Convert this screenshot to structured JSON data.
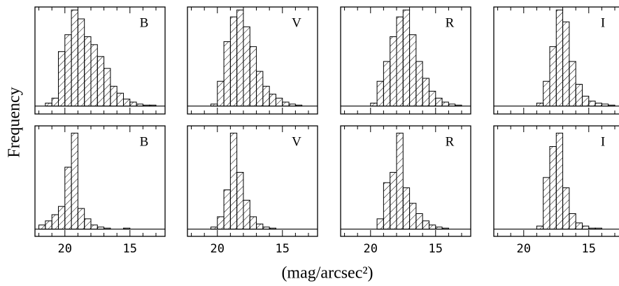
{
  "figure": {
    "ylabel": "Frequency",
    "xlabel": "(mag/arcsec²)"
  },
  "chart_data": [
    {
      "type": "histogram",
      "label": "B",
      "bins": [
        22,
        21.5,
        21,
        20.5,
        20,
        19.5,
        19,
        18.5,
        18,
        17.5,
        17,
        16.5,
        16,
        15.5,
        15,
        14.5,
        14,
        13.5,
        13,
        12.5
      ],
      "values": [
        0,
        3,
        8,
        55,
        72,
        97,
        88,
        70,
        62,
        50,
        38,
        20,
        13,
        7,
        4,
        2,
        1,
        1,
        0
      ],
      "xlim": [
        22.3,
        12.3
      ],
      "xticks": [
        20,
        15
      ],
      "minor_xticks": [
        22,
        21,
        19,
        18,
        17,
        16,
        14,
        13
      ],
      "ylim": [
        -8,
        100
      ],
      "show_xtick_labels": false,
      "color": "#000000"
    },
    {
      "type": "histogram",
      "label": "V",
      "bins": [
        22,
        21.5,
        21,
        20.5,
        20,
        19.5,
        19,
        18.5,
        18,
        17.5,
        17,
        16.5,
        16,
        15.5,
        15,
        14.5,
        14,
        13.5,
        13,
        12.5
      ],
      "values": [
        0,
        0,
        0,
        2,
        25,
        65,
        90,
        97,
        80,
        60,
        35,
        20,
        12,
        8,
        4,
        2,
        1,
        0,
        0
      ],
      "xlim": [
        22.3,
        12.3
      ],
      "xticks": [
        20,
        15
      ],
      "minor_xticks": [
        22,
        21,
        19,
        18,
        17,
        16,
        14,
        13
      ],
      "ylim": [
        -8,
        100
      ],
      "show_xtick_labels": false,
      "color": "#000000"
    },
    {
      "type": "histogram",
      "label": "R",
      "bins": [
        22,
        21.5,
        21,
        20.5,
        20,
        19.5,
        19,
        18.5,
        18,
        17.5,
        17,
        16.5,
        16,
        15.5,
        15,
        14.5,
        14,
        13.5,
        13,
        12.5
      ],
      "values": [
        0,
        0,
        0,
        0,
        3,
        25,
        45,
        70,
        90,
        97,
        72,
        45,
        28,
        15,
        8,
        4,
        2,
        1,
        0
      ],
      "xlim": [
        22.3,
        12.3
      ],
      "xticks": [
        20,
        15
      ],
      "minor_xticks": [
        22,
        21,
        19,
        18,
        17,
        16,
        14,
        13
      ],
      "ylim": [
        -8,
        100
      ],
      "show_xtick_labels": false,
      "color": "#000000"
    },
    {
      "type": "histogram",
      "label": "I",
      "bins": [
        22,
        21.5,
        21,
        20.5,
        20,
        19.5,
        19,
        18.5,
        18,
        17.5,
        17,
        16.5,
        16,
        15.5,
        15,
        14.5,
        14,
        13.5,
        13,
        12.5
      ],
      "values": [
        0,
        0,
        0,
        0,
        0,
        0,
        3,
        25,
        60,
        97,
        85,
        45,
        22,
        10,
        5,
        3,
        2,
        1,
        0
      ],
      "xlim": [
        22.3,
        12.3
      ],
      "xticks": [
        20,
        15
      ],
      "minor_xticks": [
        22,
        21,
        19,
        18,
        17,
        16,
        14,
        13
      ],
      "ylim": [
        -8,
        100
      ],
      "show_xtick_labels": false,
      "color": "#000000"
    },
    {
      "type": "histogram",
      "label": "B",
      "bins": [
        22,
        21.5,
        21,
        20.5,
        20,
        19.5,
        19,
        18.5,
        18,
        17.5,
        17,
        16.5,
        16,
        15.5,
        15,
        14.5,
        14,
        13.5,
        13,
        12.5
      ],
      "values": [
        4,
        8,
        14,
        22,
        60,
        93,
        20,
        10,
        4,
        2,
        1,
        0,
        0,
        1,
        0,
        0,
        0,
        0,
        0
      ],
      "xlim": [
        22.3,
        12.3
      ],
      "xticks": [
        20,
        15
      ],
      "minor_xticks": [
        22,
        21,
        19,
        18,
        17,
        16,
        14,
        13
      ],
      "ylim": [
        -7,
        100
      ],
      "show_xtick_labels": true,
      "color": "#000000"
    },
    {
      "type": "histogram",
      "label": "V",
      "bins": [
        22,
        21.5,
        21,
        20.5,
        20,
        19.5,
        19,
        18.5,
        18,
        17.5,
        17,
        16.5,
        16,
        15.5,
        15,
        14.5,
        14,
        13.5,
        13,
        12.5
      ],
      "values": [
        0,
        0,
        0,
        2,
        12,
        38,
        93,
        55,
        28,
        12,
        5,
        2,
        1,
        0,
        0,
        0,
        0,
        0,
        0
      ],
      "xlim": [
        22.3,
        12.3
      ],
      "xticks": [
        20,
        15
      ],
      "minor_xticks": [
        22,
        21,
        19,
        18,
        17,
        16,
        14,
        13
      ],
      "ylim": [
        -7,
        100
      ],
      "show_xtick_labels": true,
      "color": "#000000"
    },
    {
      "type": "histogram",
      "label": "R",
      "bins": [
        22,
        21.5,
        21,
        20.5,
        20,
        19.5,
        19,
        18.5,
        18,
        17.5,
        17,
        16.5,
        16,
        15.5,
        15,
        14.5,
        14,
        13.5,
        13,
        12.5
      ],
      "values": [
        0,
        0,
        0,
        0,
        0,
        10,
        45,
        55,
        93,
        40,
        25,
        15,
        8,
        4,
        2,
        1,
        0,
        0,
        0
      ],
      "xlim": [
        22.3,
        12.3
      ],
      "xticks": [
        20,
        15
      ],
      "minor_xticks": [
        22,
        21,
        19,
        18,
        17,
        16,
        14,
        13
      ],
      "ylim": [
        -7,
        100
      ],
      "show_xtick_labels": true,
      "color": "#000000"
    },
    {
      "type": "histogram",
      "label": "I",
      "bins": [
        22,
        21.5,
        21,
        20.5,
        20,
        19.5,
        19,
        18.5,
        18,
        17.5,
        17,
        16.5,
        16,
        15.5,
        15,
        14.5,
        14,
        13.5,
        13,
        12.5
      ],
      "values": [
        0,
        0,
        0,
        0,
        0,
        0,
        3,
        50,
        80,
        93,
        40,
        15,
        6,
        3,
        1,
        1,
        0,
        0,
        0
      ],
      "xlim": [
        22.3,
        12.3
      ],
      "xticks": [
        20,
        15
      ],
      "minor_xticks": [
        22,
        21,
        19,
        18,
        17,
        16,
        14,
        13
      ],
      "ylim": [
        -7,
        100
      ],
      "show_xtick_labels": true,
      "color": "#000000"
    }
  ]
}
